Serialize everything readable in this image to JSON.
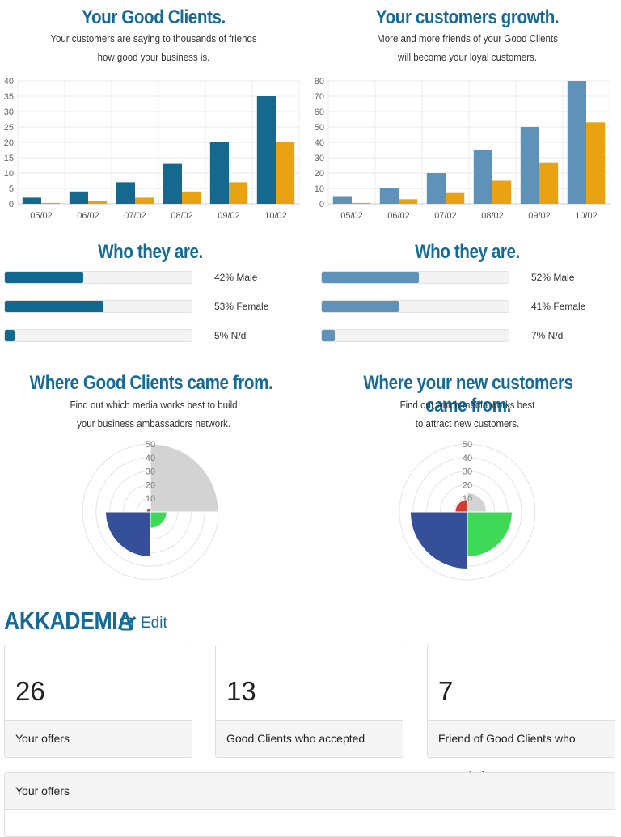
{
  "left": {
    "title": "Your Good Clients.",
    "subtitle_lines": [
      "Your customers are saying to thousands of friends",
      "how good your business is."
    ],
    "who_title": "Who they are.",
    "bars": [
      {
        "label": "42% Male",
        "value": 42
      },
      {
        "label": "53% Female",
        "value": 53
      },
      {
        "label": "5% N/d",
        "value": 5
      }
    ],
    "where_title": "Where Good Clients came from.",
    "where_sub_lines": [
      "Find out which media works best to build",
      "your business ambassadors network."
    ]
  },
  "right": {
    "title": "Your customers growth.",
    "subtitle_lines": [
      "More and more friends of your Good Clients",
      "will become your loyal customers."
    ],
    "who_title": "Who they are.",
    "bars": [
      {
        "label": "52% Male",
        "value": 52
      },
      {
        "label": "41% Female",
        "value": 41
      },
      {
        "label": "7% N/d",
        "value": 7
      }
    ],
    "where_title": "Where your new customers came from.",
    "where_sub_lines": [
      "Find out which media works best",
      "to attract new customers."
    ]
  },
  "colors": {
    "dark_blue": "#12698f",
    "light_blue": "#5f92b8",
    "orange": "#e9a312",
    "bar_left": "#15698f",
    "bar_right": "#5f92b8"
  },
  "chart_data": [
    {
      "type": "bar",
      "categories": [
        "05/02",
        "06/02",
        "07/02",
        "08/02",
        "09/02",
        "10/02"
      ],
      "series": [
        {
          "values": [
            2,
            4,
            7,
            13,
            20,
            35
          ]
        },
        {
          "values": [
            0.3,
            1,
            2,
            4,
            7,
            20
          ]
        }
      ],
      "ylim": [
        0,
        40
      ],
      "yticks": [
        0,
        5,
        10,
        15,
        20,
        25,
        30,
        35,
        40
      ],
      "grid": true
    },
    {
      "type": "bar",
      "categories": [
        "05/02",
        "06/02",
        "07/02",
        "08/02",
        "09/02",
        "10/02"
      ],
      "series": [
        {
          "values": [
            5,
            10,
            20,
            35,
            50,
            80
          ]
        },
        {
          "values": [
            0.6,
            3,
            7,
            15,
            27,
            53
          ]
        }
      ],
      "ylim": [
        0,
        80
      ],
      "yticks": [
        0,
        10,
        20,
        30,
        40,
        50,
        60,
        70,
        80
      ],
      "grid": true
    },
    {
      "type": "polar-area",
      "rticks": [
        10,
        20,
        30,
        40,
        50
      ],
      "rmax": 50,
      "values": [
        50,
        12,
        33,
        3
      ],
      "colors": [
        "#d3d3d3",
        "#3dd957",
        "#354f98",
        "#d43c2f"
      ]
    },
    {
      "type": "polar-area",
      "rticks": [
        10,
        20,
        30,
        40,
        50
      ],
      "rmax": 50,
      "values": [
        14,
        33,
        42,
        9
      ],
      "colors": [
        "#d3d3d3",
        "#3dd957",
        "#354f98",
        "#d43c2f"
      ]
    }
  ],
  "company": {
    "name": "AKKADEMIA",
    "edit_label": "Edit"
  },
  "stats": [
    {
      "value": "26",
      "label": "Your offers"
    },
    {
      "value": "13",
      "label": "Good Clients who accepted"
    },
    {
      "value": "7",
      "label": "Friend of Good Clients who accepted"
    }
  ],
  "panel": {
    "title": "Your offers"
  }
}
